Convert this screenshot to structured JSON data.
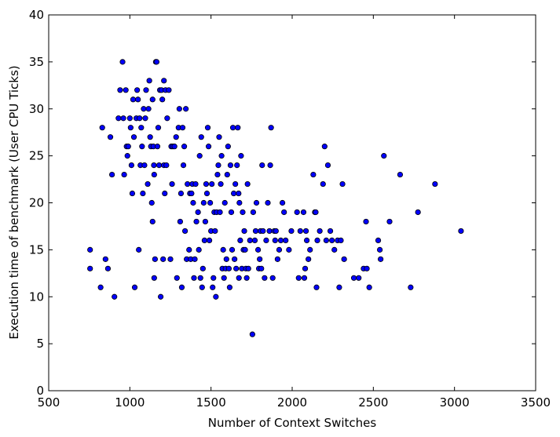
{
  "chart_data": {
    "type": "scatter",
    "title": "",
    "xlabel": "Number of Context Switches",
    "ylabel": "Execution time of benchmark (User CPU Ticks)",
    "xlim": [
      500,
      3500
    ],
    "ylim": [
      0,
      40
    ],
    "xticks": [
      "500",
      "1000",
      "1500",
      "2000",
      "2500",
      "3000",
      "3500"
    ],
    "yticks": [
      "0",
      "5",
      "10",
      "15",
      "20",
      "25",
      "30",
      "35",
      "40"
    ],
    "grid": false,
    "marker_color": "#0000ff",
    "marker_edge_color": "#000000",
    "points": [
      [
        755,
        15
      ],
      [
        755,
        13
      ],
      [
        820,
        11
      ],
      [
        830,
        28
      ],
      [
        850,
        14
      ],
      [
        865,
        13
      ],
      [
        880,
        27
      ],
      [
        890,
        23
      ],
      [
        905,
        10
      ],
      [
        930,
        29
      ],
      [
        940,
        32
      ],
      [
        955,
        35
      ],
      [
        960,
        29
      ],
      [
        965,
        23
      ],
      [
        975,
        32
      ],
      [
        980,
        26
      ],
      [
        985,
        25
      ],
      [
        990,
        26
      ],
      [
        1000,
        29
      ],
      [
        1005,
        28
      ],
      [
        1010,
        24
      ],
      [
        1015,
        21
      ],
      [
        1020,
        31
      ],
      [
        1025,
        27
      ],
      [
        1030,
        11
      ],
      [
        1040,
        29
      ],
      [
        1045,
        32
      ],
      [
        1050,
        31
      ],
      [
        1055,
        15
      ],
      [
        1060,
        29
      ],
      [
        1065,
        24
      ],
      [
        1070,
        28
      ],
      [
        1075,
        26
      ],
      [
        1080,
        21
      ],
      [
        1085,
        30
      ],
      [
        1090,
        24
      ],
      [
        1095,
        29
      ],
      [
        1100,
        32
      ],
      [
        1110,
        22
      ],
      [
        1115,
        30
      ],
      [
        1120,
        33
      ],
      [
        1125,
        27
      ],
      [
        1130,
        26
      ],
      [
        1135,
        20
      ],
      [
        1140,
        18
      ],
      [
        1140,
        31
      ],
      [
        1145,
        26
      ],
      [
        1148,
        24
      ],
      [
        1150,
        12
      ],
      [
        1150,
        23
      ],
      [
        1155,
        14
      ],
      [
        1160,
        35
      ],
      [
        1165,
        35
      ],
      [
        1170,
        26
      ],
      [
        1175,
        28
      ],
      [
        1180,
        24
      ],
      [
        1185,
        32
      ],
      [
        1190,
        10
      ],
      [
        1195,
        32
      ],
      [
        1200,
        31
      ],
      [
        1205,
        14
      ],
      [
        1210,
        24
      ],
      [
        1210,
        33
      ],
      [
        1215,
        21
      ],
      [
        1220,
        32
      ],
      [
        1225,
        24
      ],
      [
        1230,
        29
      ],
      [
        1240,
        32
      ],
      [
        1250,
        14
      ],
      [
        1255,
        26
      ],
      [
        1260,
        22
      ],
      [
        1265,
        26
      ],
      [
        1275,
        26
      ],
      [
        1285,
        27
      ],
      [
        1290,
        12
      ],
      [
        1300,
        28
      ],
      [
        1305,
        30
      ],
      [
        1310,
        18
      ],
      [
        1315,
        21
      ],
      [
        1320,
        11
      ],
      [
        1325,
        28
      ],
      [
        1330,
        24
      ],
      [
        1335,
        26
      ],
      [
        1340,
        17
      ],
      [
        1345,
        30
      ],
      [
        1350,
        14
      ],
      [
        1355,
        22
      ],
      [
        1365,
        15
      ],
      [
        1370,
        21
      ],
      [
        1375,
        14
      ],
      [
        1380,
        21
      ],
      [
        1385,
        22
      ],
      [
        1390,
        20
      ],
      [
        1395,
        12
      ],
      [
        1400,
        14
      ],
      [
        1405,
        22
      ],
      [
        1410,
        18
      ],
      [
        1420,
        19
      ],
      [
        1425,
        15
      ],
      [
        1430,
        25
      ],
      [
        1435,
        12
      ],
      [
        1440,
        27
      ],
      [
        1445,
        11
      ],
      [
        1450,
        13
      ],
      [
        1455,
        20
      ],
      [
        1460,
        16
      ],
      [
        1465,
        18
      ],
      [
        1470,
        22
      ],
      [
        1475,
        21
      ],
      [
        1480,
        28
      ],
      [
        1485,
        26
      ],
      [
        1490,
        16
      ],
      [
        1495,
        20
      ],
      [
        1500,
        17
      ],
      [
        1505,
        22
      ],
      [
        1510,
        11
      ],
      [
        1515,
        12
      ],
      [
        1520,
        19
      ],
      [
        1525,
        17
      ],
      [
        1530,
        10
      ],
      [
        1535,
        19
      ],
      [
        1540,
        23
      ],
      [
        1545,
        24
      ],
      [
        1550,
        27
      ],
      [
        1555,
        19
      ],
      [
        1560,
        22
      ],
      [
        1565,
        25
      ],
      [
        1570,
        13
      ],
      [
        1575,
        15
      ],
      [
        1580,
        12
      ],
      [
        1585,
        20
      ],
      [
        1590,
        13
      ],
      [
        1595,
        14
      ],
      [
        1600,
        23
      ],
      [
        1605,
        26
      ],
      [
        1610,
        13
      ],
      [
        1615,
        11
      ],
      [
        1620,
        24
      ],
      [
        1625,
        19
      ],
      [
        1630,
        15
      ],
      [
        1635,
        28
      ],
      [
        1640,
        21
      ],
      [
        1645,
        14
      ],
      [
        1650,
        22
      ],
      [
        1655,
        13
      ],
      [
        1660,
        24
      ],
      [
        1665,
        28
      ],
      [
        1670,
        21
      ],
      [
        1672,
        12
      ],
      [
        1675,
        20
      ],
      [
        1680,
        16
      ],
      [
        1685,
        25
      ],
      [
        1690,
        13
      ],
      [
        1695,
        19
      ],
      [
        1700,
        15
      ],
      [
        1705,
        17
      ],
      [
        1710,
        15
      ],
      [
        1715,
        13
      ],
      [
        1720,
        12
      ],
      [
        1725,
        22
      ],
      [
        1730,
        13
      ],
      [
        1740,
        16
      ],
      [
        1755,
        6
      ],
      [
        1760,
        19
      ],
      [
        1770,
        16
      ],
      [
        1775,
        17
      ],
      [
        1780,
        20
      ],
      [
        1790,
        15
      ],
      [
        1795,
        13
      ],
      [
        1800,
        14
      ],
      [
        1805,
        17
      ],
      [
        1810,
        13
      ],
      [
        1815,
        24
      ],
      [
        1820,
        17
      ],
      [
        1830,
        12
      ],
      [
        1840,
        16
      ],
      [
        1850,
        20
      ],
      [
        1860,
        17
      ],
      [
        1865,
        24
      ],
      [
        1870,
        28
      ],
      [
        1880,
        12
      ],
      [
        1890,
        17
      ],
      [
        1895,
        16
      ],
      [
        1900,
        17
      ],
      [
        1910,
        14
      ],
      [
        1920,
        15
      ],
      [
        1930,
        16
      ],
      [
        1940,
        20
      ],
      [
        1950,
        19
      ],
      [
        1960,
        16
      ],
      [
        1980,
        15
      ],
      [
        1995,
        17
      ],
      [
        2030,
        19
      ],
      [
        2040,
        12
      ],
      [
        2050,
        17
      ],
      [
        2070,
        19
      ],
      [
        2075,
        12
      ],
      [
        2080,
        13
      ],
      [
        2085,
        17
      ],
      [
        2090,
        16
      ],
      [
        2100,
        14
      ],
      [
        2110,
        15
      ],
      [
        2130,
        23
      ],
      [
        2140,
        19
      ],
      [
        2145,
        19
      ],
      [
        2150,
        11
      ],
      [
        2155,
        16
      ],
      [
        2170,
        17
      ],
      [
        2190,
        22
      ],
      [
        2200,
        26
      ],
      [
        2210,
        16
      ],
      [
        2220,
        24
      ],
      [
        2235,
        17
      ],
      [
        2245,
        16
      ],
      [
        2260,
        15
      ],
      [
        2280,
        16
      ],
      [
        2290,
        11
      ],
      [
        2300,
        16
      ],
      [
        2310,
        22
      ],
      [
        2320,
        14
      ],
      [
        2380,
        12
      ],
      [
        2410,
        12
      ],
      [
        2440,
        13
      ],
      [
        2455,
        18
      ],
      [
        2460,
        13
      ],
      [
        2475,
        11
      ],
      [
        2530,
        16
      ],
      [
        2540,
        15
      ],
      [
        2545,
        14
      ],
      [
        2565,
        25
      ],
      [
        2600,
        18
      ],
      [
        2665,
        23
      ],
      [
        2730,
        11
      ],
      [
        2775,
        19
      ],
      [
        2880,
        22
      ],
      [
        3040,
        17
      ]
    ]
  }
}
